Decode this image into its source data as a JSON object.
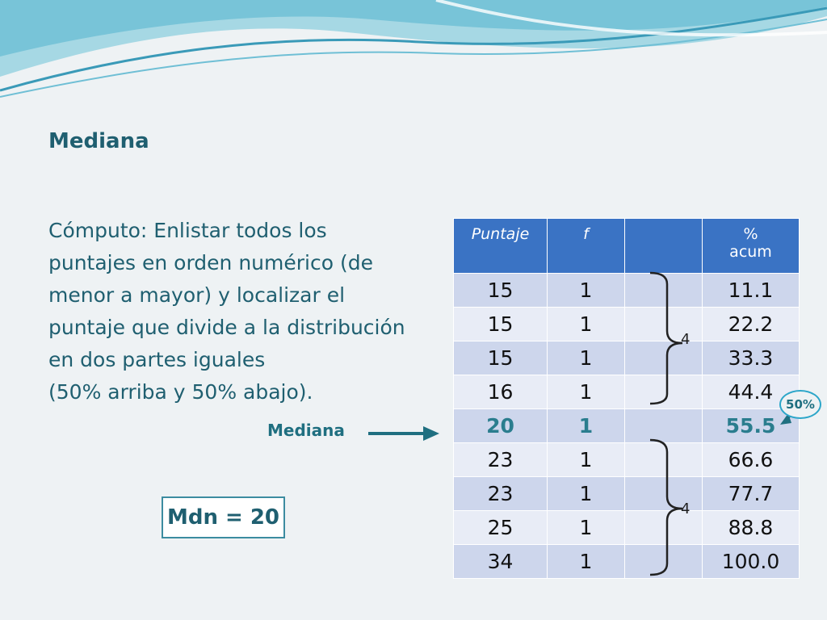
{
  "slide": {
    "title": "Mediana",
    "body_lines": [
      "Cómputo: Enlistar todos los",
      "puntajes en orden numérico (de",
      "menor a mayor) y localizar el",
      "puntaje que divide a la distribución",
      "en dos partes iguales",
      "(50% arriba y 50% abajo)."
    ],
    "median_label": "Mediana",
    "result": "Mdn = 20",
    "colors": {
      "accent": "#1f5f70",
      "table_header": "#3a73c4",
      "row_dark": "#cdd6ec",
      "row_light": "#e8ecf6",
      "median_text": "#2a7d8e"
    }
  },
  "table": {
    "headers": [
      "Puntaje",
      "f",
      "",
      "%",
      "acum"
    ],
    "rows": [
      {
        "score": "15",
        "f": "1",
        "cum": "11.1"
      },
      {
        "score": "15",
        "f": "1",
        "cum": "22.2"
      },
      {
        "score": "15",
        "f": "1",
        "cum": "33.3"
      },
      {
        "score": "16",
        "f": "1",
        "cum": "44.4"
      },
      {
        "score": "20",
        "f": "1",
        "cum": "55.5"
      },
      {
        "score": "23",
        "f": "1",
        "cum": "66.6"
      },
      {
        "score": "23",
        "f": "1",
        "cum": "77.7"
      },
      {
        "score": "25",
        "f": "1",
        "cum": "88.8"
      },
      {
        "score": "34",
        "f": "1",
        "cum": "100.0"
      }
    ],
    "median_row_index": 4
  },
  "annotations": {
    "upper_count": "4",
    "lower_count": "4",
    "percent_badge": "50%",
    "icons": [
      "right-arrow-icon",
      "brace-icon",
      "curved-arrow-icon"
    ]
  }
}
